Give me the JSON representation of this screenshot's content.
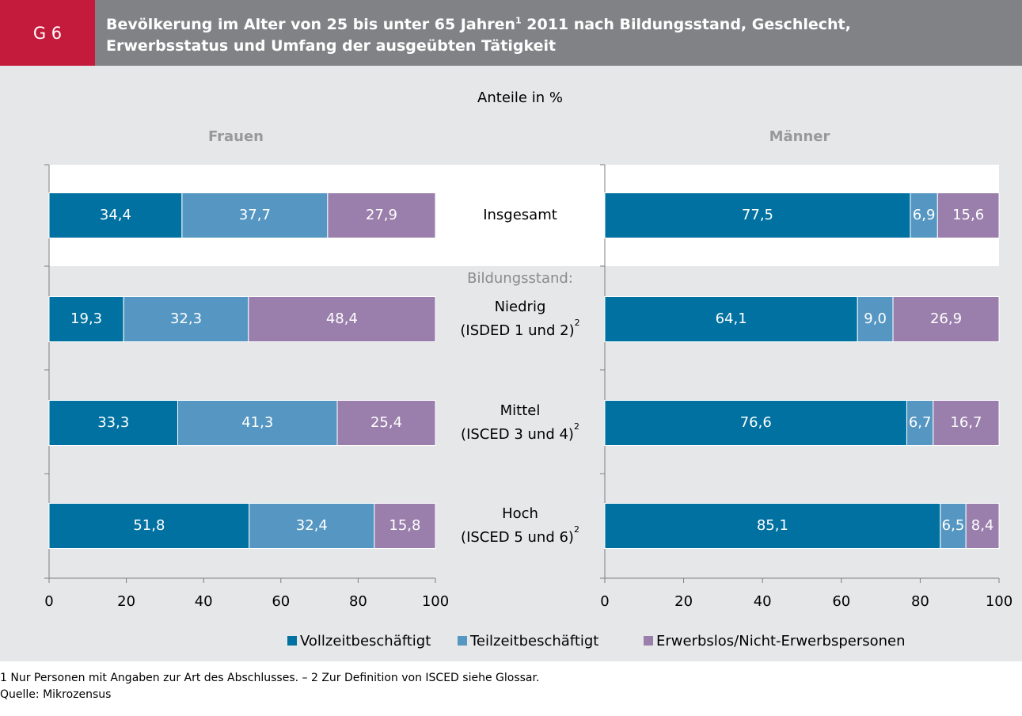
{
  "label": "G 6",
  "title": {
    "line1": "Bevölkerung im Alter von 25 bis unter 65 Jahren",
    "note": "1",
    "line1_rest": " 2011 nach Bildungsstand, Geschlecht,",
    "line2": "Erwerbsstatus und Umfang der ausgeübten Tätigkeit"
  },
  "subtitle": "Anteile in %",
  "group_label": "Bildungsstand:",
  "footnotes": [
    "1 Nur Personen mit Angaben zur Art des Abschlusses. – 2 Zur Definition von ISCED siehe Glossar.",
    "Quelle: Mikrozensus"
  ],
  "chart_data": [
    {
      "type": "bar",
      "orientation": "horizontal",
      "stacked": true,
      "title": "Frauen",
      "categories": [
        {
          "lines": [
            "Insgesamt"
          ]
        },
        {
          "lines": [
            "Niedrig",
            "(ISDED 1 und 2)"
          ],
          "note": "2"
        },
        {
          "lines": [
            "Mittel",
            "(ISCED 3 und 4)"
          ],
          "note": "2"
        },
        {
          "lines": [
            "Hoch",
            "(ISCED 5 und 6)"
          ],
          "note": "2"
        }
      ],
      "series": [
        {
          "name": "Vollzeitbeschäftigt",
          "color": "#0071a0",
          "values": [
            34.4,
            19.3,
            33.3,
            51.8
          ],
          "value_labels": [
            "34,4",
            "19,3",
            "33,3",
            "51,8"
          ]
        },
        {
          "name": "Teilzeitbeschäftigt",
          "color": "#5597c2",
          "values": [
            37.7,
            32.3,
            41.3,
            32.4
          ],
          "value_labels": [
            "37,7",
            "32,3",
            "41,3",
            "32,4"
          ]
        },
        {
          "name": "Erwerbslos/Nicht-Erwerbspersonen",
          "color": "#9a7eab",
          "values": [
            27.9,
            48.4,
            25.4,
            15.8
          ],
          "value_labels": [
            "27,9",
            "48,4",
            "25,4",
            "15,8"
          ]
        }
      ],
      "xlim": [
        0,
        100
      ],
      "xticks": [
        0,
        20,
        40,
        60,
        80,
        100
      ],
      "grid": false
    },
    {
      "type": "bar",
      "orientation": "horizontal",
      "stacked": true,
      "title": "Männer",
      "series": [
        {
          "color": "#0071a0",
          "values": [
            77.5,
            64.1,
            76.6,
            85.1
          ],
          "value_labels": [
            "77,5",
            "64,1",
            "76,6",
            "85,1"
          ]
        },
        {
          "color": "#5597c2",
          "values": [
            6.9,
            9.0,
            6.7,
            6.5
          ],
          "value_labels": [
            "6,9",
            "9,0",
            "6,7",
            "6,5"
          ]
        },
        {
          "color": "#9a7eab",
          "values": [
            15.6,
            26.9,
            16.7,
            8.4
          ],
          "value_labels": [
            "15,6",
            "26,9",
            "16,7",
            "8,4"
          ]
        }
      ],
      "xlim": [
        0,
        100
      ],
      "xticks": [
        0,
        20,
        40,
        60,
        80,
        100
      ],
      "grid": false
    }
  ]
}
